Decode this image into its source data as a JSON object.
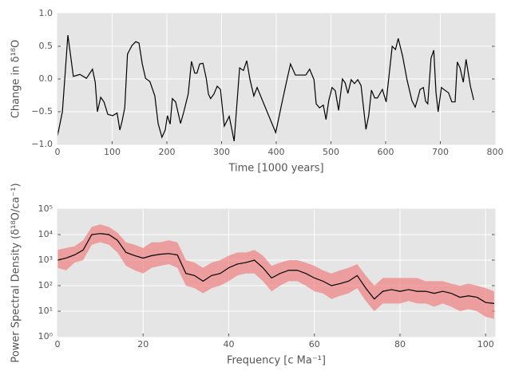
{
  "chart_data": [
    {
      "type": "line",
      "xlabel": "Time [1000 years]",
      "ylabel": "Change in δ¹⁸O",
      "xlim": [
        0,
        800
      ],
      "xticks": [
        0,
        100,
        200,
        300,
        400,
        500,
        600,
        700,
        800
      ],
      "ylim": [
        -1,
        1
      ],
      "yticks": [
        {
          "value": -1,
          "label": "−1.0"
        },
        {
          "value": -0.5,
          "label": "−0.5"
        },
        {
          "value": 0,
          "label": "0.0"
        },
        {
          "value": 0.5,
          "label": "0.5"
        },
        {
          "value": 1,
          "label": "1.0"
        }
      ],
      "grid": true,
      "x": [
        0,
        9,
        19,
        29,
        41,
        53,
        64,
        69,
        73,
        79,
        85,
        92,
        101,
        109,
        114,
        118,
        123,
        128,
        136,
        143,
        149,
        155,
        161,
        169,
        178,
        184,
        191,
        197,
        201,
        206,
        210,
        216,
        225,
        231,
        239,
        245,
        251,
        255,
        260,
        266,
        272,
        276,
        280,
        286,
        292,
        298,
        305,
        314,
        323,
        333,
        340,
        346,
        352,
        359,
        365,
        399,
        410,
        418,
        426,
        435,
        447,
        454,
        461,
        469,
        473,
        479,
        486,
        491,
        496,
        502,
        508,
        514,
        521,
        526,
        531,
        537,
        543,
        549,
        555,
        564,
        569,
        574,
        580,
        585,
        594,
        601,
        612,
        618,
        623,
        631,
        639,
        648,
        654,
        658,
        663,
        669,
        673,
        677,
        683,
        688,
        692,
        696,
        702,
        708,
        715,
        721,
        727,
        731,
        736,
        742,
        747,
        755,
        761
      ],
      "series": [
        {
          "color": "#000000",
          "values": [
            -0.87,
            -0.5,
            0.67,
            0.04,
            0.07,
            0.01,
            0.15,
            -0.05,
            -0.5,
            -0.28,
            -0.35,
            -0.54,
            -0.56,
            -0.52,
            -0.78,
            -0.65,
            -0.44,
            0.38,
            0.51,
            0.57,
            0.55,
            0.23,
            0.01,
            -0.04,
            -0.26,
            -0.68,
            -0.89,
            -0.78,
            -0.56,
            -0.69,
            -0.3,
            -0.35,
            -0.68,
            -0.5,
            -0.23,
            0.27,
            0.09,
            0.09,
            0.23,
            0.24,
            0.01,
            -0.23,
            -0.3,
            -0.23,
            -0.11,
            -0.16,
            -0.72,
            -0.57,
            -0.95,
            0.17,
            0.13,
            0.28,
            -0.01,
            -0.26,
            -0.13,
            -0.82,
            -0.38,
            -0.07,
            0.23,
            0.06,
            0.06,
            0.06,
            0.15,
            -0.01,
            -0.38,
            -0.44,
            -0.4,
            -0.62,
            -0.33,
            -0.13,
            -0.18,
            -0.48,
            0.0,
            -0.06,
            -0.22,
            -0.01,
            -0.07,
            -0.01,
            -0.1,
            -0.77,
            -0.56,
            -0.17,
            -0.29,
            -0.29,
            -0.16,
            -0.35,
            0.5,
            0.45,
            0.62,
            0.35,
            -0.01,
            -0.33,
            -0.43,
            -0.32,
            -0.16,
            -0.13,
            -0.34,
            -0.38,
            0.32,
            0.44,
            -0.2,
            -0.5,
            -0.13,
            -0.17,
            -0.21,
            -0.35,
            -0.35,
            0.26,
            0.17,
            -0.05,
            0.3,
            -0.11,
            -0.32
          ]
        }
      ]
    },
    {
      "type": "line",
      "xlabel": "Frequency [c Ma⁻¹]",
      "ylabel": "Power Spectral Density (δ¹⁸O/ca⁻¹)",
      "xlim": [
        0,
        102.2
      ],
      "xticks": [
        0,
        20,
        40,
        60,
        80,
        100
      ],
      "ylim": [
        1,
        100000
      ],
      "ylog": true,
      "yticks": [
        {
          "value": 1,
          "label": "10⁰"
        },
        {
          "value": 10,
          "label": "10¹"
        },
        {
          "value": 100,
          "label": "10²"
        },
        {
          "value": 1000,
          "label": "10³"
        },
        {
          "value": 10000,
          "label": "10⁴"
        },
        {
          "value": 100000,
          "label": "10⁵"
        }
      ],
      "grid": true,
      "x": [
        0,
        2,
        4,
        6,
        8,
        10,
        12,
        14,
        16,
        18,
        20,
        22,
        24,
        26,
        28,
        30,
        32,
        34,
        36,
        38,
        40,
        42,
        44,
        46,
        48,
        50,
        52,
        54,
        56,
        58,
        60,
        62,
        64,
        66,
        68,
        70,
        72,
        74,
        76,
        78,
        80,
        82,
        84,
        86,
        88,
        90,
        92,
        94,
        96,
        98,
        100,
        102
      ],
      "band": {
        "color": "#f08080",
        "lower": [
          500,
          400,
          800,
          1000,
          4000,
          5000,
          4000,
          2000,
          600,
          400,
          300,
          500,
          600,
          700,
          500,
          100,
          80,
          50,
          80,
          100,
          150,
          250,
          300,
          300,
          150,
          60,
          100,
          150,
          150,
          100,
          60,
          50,
          30,
          40,
          50,
          80,
          25,
          10,
          20,
          20,
          20,
          25,
          20,
          20,
          15,
          20,
          15,
          10,
          12,
          10,
          6,
          5
        ],
        "upper": [
          2500,
          3000,
          3500,
          6000,
          20000,
          25000,
          20000,
          12000,
          5000,
          4000,
          3000,
          5000,
          5000,
          6000,
          5000,
          1000,
          800,
          500,
          800,
          1000,
          1500,
          2000,
          2000,
          2500,
          1500,
          600,
          800,
          1000,
          1000,
          800,
          600,
          400,
          300,
          400,
          500,
          700,
          250,
          100,
          200,
          200,
          200,
          200,
          200,
          150,
          150,
          150,
          120,
          100,
          120,
          100,
          80,
          60
        ]
      },
      "series": [
        {
          "color": "#000000",
          "values": [
            1000,
            1200,
            1600,
            2500,
            10000,
            11000,
            10000,
            6000,
            2000,
            1500,
            1200,
            1500,
            1700,
            1800,
            1600,
            300,
            250,
            150,
            250,
            300,
            500,
            700,
            800,
            1000,
            500,
            200,
            300,
            400,
            400,
            300,
            200,
            150,
            100,
            120,
            150,
            250,
            80,
            30,
            60,
            70,
            60,
            70,
            60,
            60,
            50,
            60,
            50,
            35,
            40,
            35,
            22,
            20
          ]
        }
      ]
    }
  ]
}
